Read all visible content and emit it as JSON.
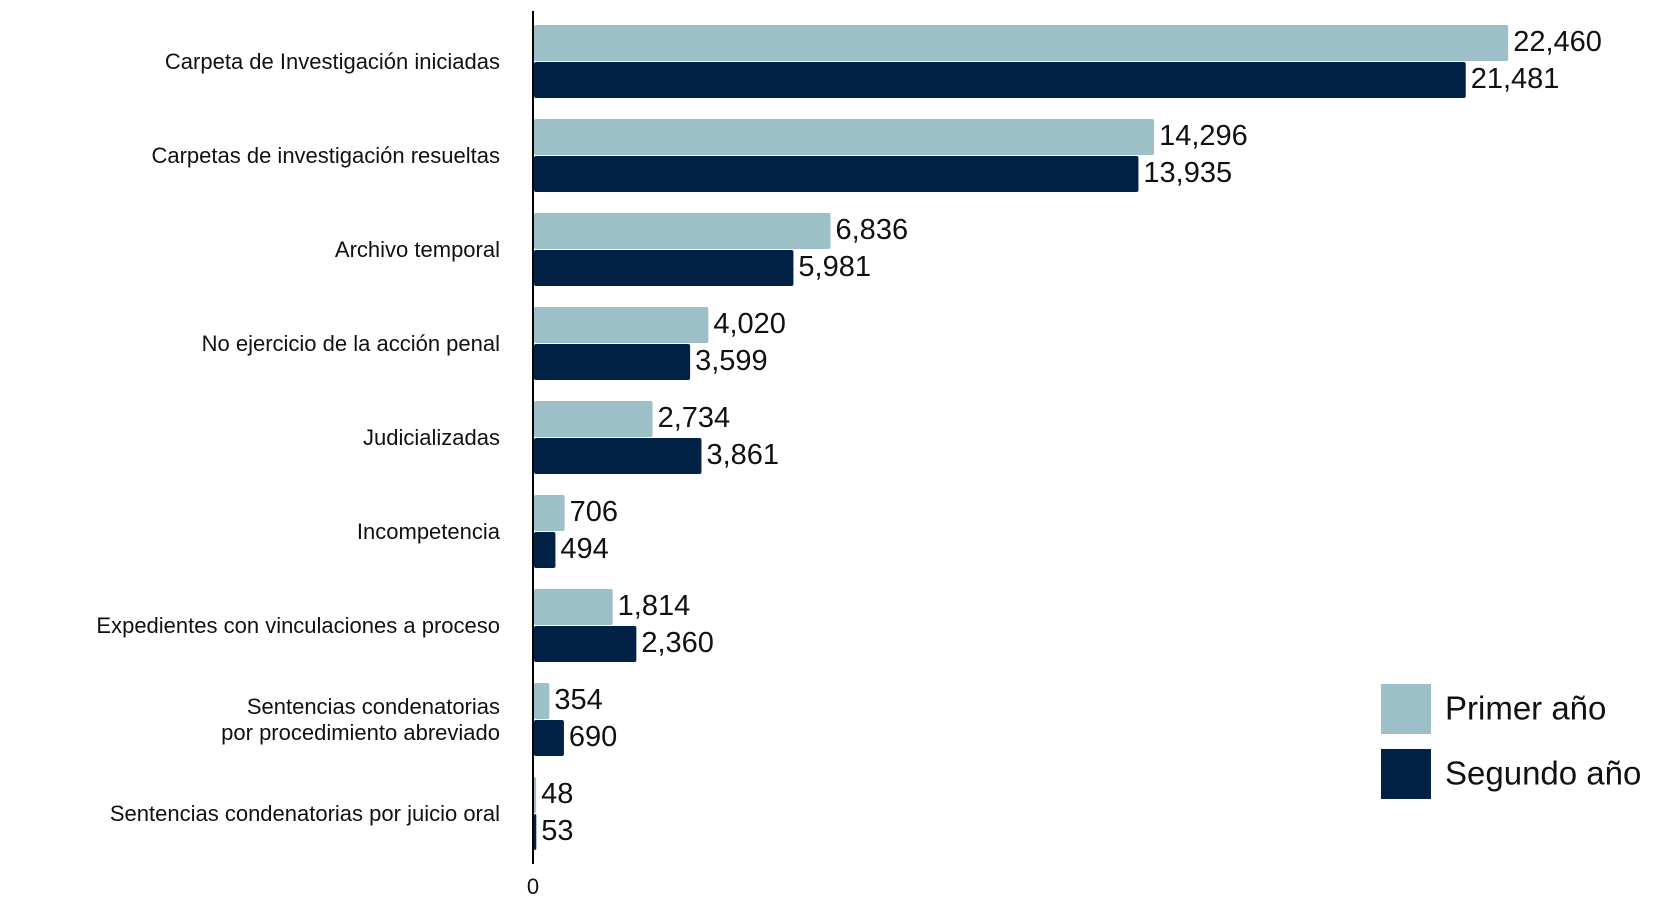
{
  "chart_data": {
    "type": "bar",
    "orientation": "horizontal",
    "categories": [
      "Carpeta de Investigación iniciadas",
      "Carpetas de investigación resueltas",
      "Archivo temporal",
      "No ejercicio de la acción penal",
      "Judicializadas",
      "Incompetencia",
      "Expedientes con vinculaciones a proceso",
      "Sentencias condenatorias\npor procedimiento abreviado",
      "Sentencias condenatorias por juicio oral"
    ],
    "series": [
      {
        "name": "Primer año",
        "color": "#9dbfc8",
        "values": [
          22460,
          14296,
          6836,
          4020,
          2734,
          706,
          1814,
          354,
          48
        ],
        "value_labels": [
          "22,460",
          "14,296",
          "6,836",
          "4,020",
          "2,734",
          "706",
          "1,814",
          "354",
          "48"
        ]
      },
      {
        "name": "Segundo año",
        "color": "#012245",
        "values": [
          21481,
          13935,
          5981,
          3599,
          3861,
          494,
          2360,
          690,
          53
        ],
        "value_labels": [
          "21,481",
          "13,935",
          "5,981",
          "3,599",
          "3,861",
          "494",
          "2,360",
          "690",
          "53"
        ]
      }
    ],
    "xlim": [
      0,
      24000
    ],
    "xticks": [
      0
    ],
    "grid": false,
    "legend": "lower right"
  }
}
